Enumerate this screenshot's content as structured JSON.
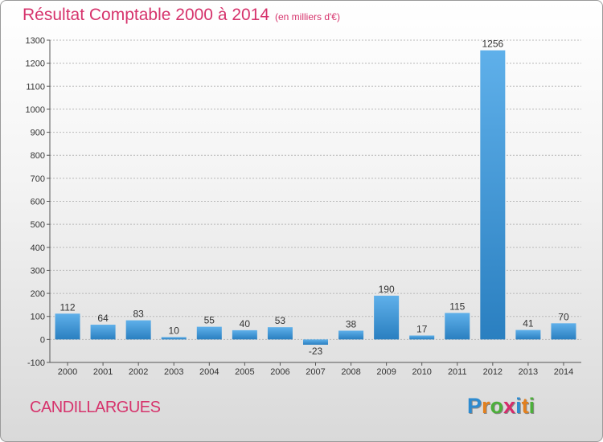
{
  "title": "Résultat Comptable 2000 à 2014",
  "subtitle": "(en milliers d'€)",
  "commune": "CANDILLARGUES",
  "logo": {
    "letters": [
      "P",
      "r",
      "o",
      "x",
      "i",
      "t",
      "i"
    ],
    "colors": [
      "#2e8bd0",
      "#e3801e",
      "#4caf3a",
      "#d62b6b",
      "#2e8bd0",
      "#e3801e",
      "#4caf3a"
    ]
  },
  "colors": {
    "bar_light": "#5fb0ea",
    "bar_dark": "#2a7fc0",
    "title": "#d6336c"
  },
  "chart_data": {
    "type": "bar",
    "categories": [
      "2000",
      "2001",
      "2002",
      "2003",
      "2004",
      "2005",
      "2006",
      "2007",
      "2008",
      "2009",
      "2010",
      "2011",
      "2012",
      "2013",
      "2014"
    ],
    "values": [
      112,
      64,
      83,
      10,
      55,
      40,
      53,
      -23,
      38,
      190,
      17,
      115,
      1256,
      41,
      70
    ],
    "ylim": [
      -100,
      1300
    ],
    "yticks": [
      -100,
      0,
      100,
      200,
      300,
      400,
      500,
      600,
      700,
      800,
      900,
      1000,
      1100,
      1200,
      1300
    ],
    "grid": true,
    "xlabel": "",
    "ylabel": ""
  }
}
